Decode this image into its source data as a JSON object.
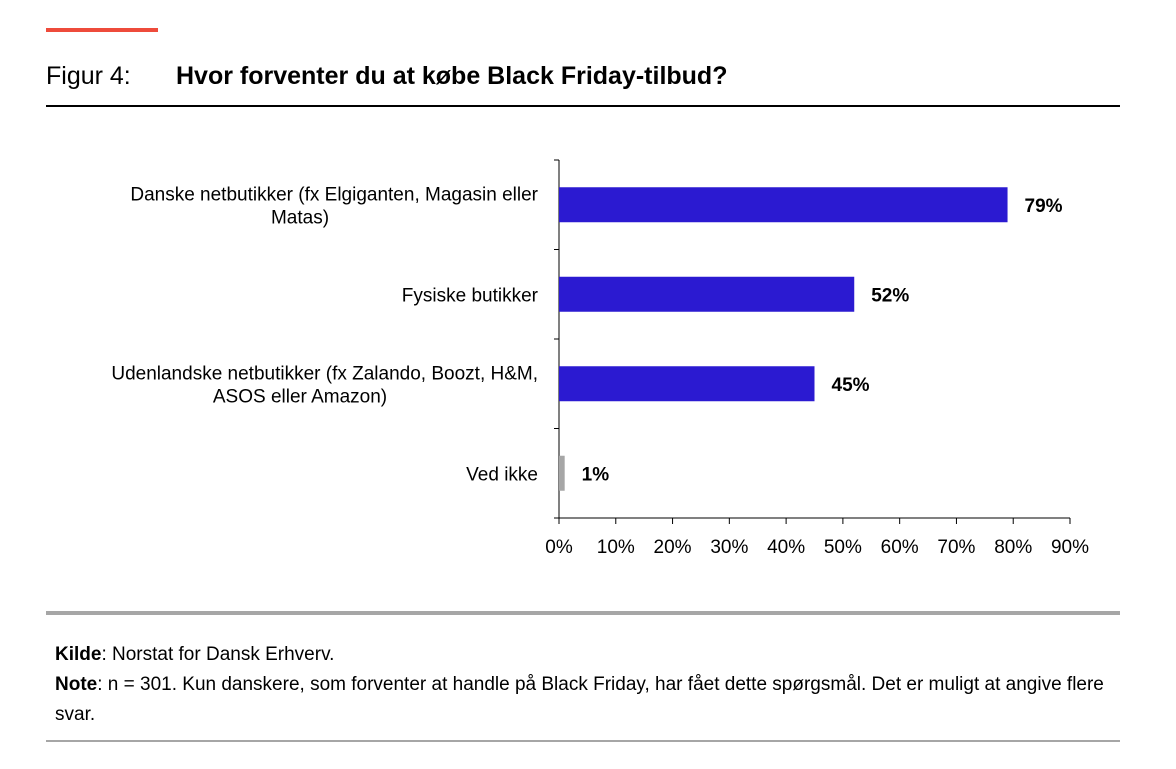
{
  "figure": {
    "label": "Figur 4:",
    "title": "Hvor forventer du at købe Black Friday-tilbud?"
  },
  "colors": {
    "accent": "#ee4b3b",
    "primary_bar": "#2b1ad1",
    "secondary_bar": "#a6a6a6",
    "rule": "#a6a6a6"
  },
  "chart_data": {
    "type": "bar",
    "orientation": "horizontal",
    "categories": [
      [
        "Danske netbutikker (fx Elgiganten, Magasin eller",
        "Matas)"
      ],
      [
        "Fysiske butikker"
      ],
      [
        "Udenlandske netbutikker (fx Zalando, Boozt, H&M,",
        "ASOS eller Amazon)"
      ],
      [
        "Ved ikke"
      ]
    ],
    "values": [
      79,
      52,
      45,
      1
    ],
    "data_labels": [
      "79%",
      "52%",
      "45%",
      "1%"
    ],
    "bar_colors": [
      "#2b1ad1",
      "#2b1ad1",
      "#2b1ad1",
      "#a6a6a6"
    ],
    "xlim": [
      0,
      90
    ],
    "x_ticks": [
      "0%",
      "10%",
      "20%",
      "30%",
      "40%",
      "50%",
      "60%",
      "70%",
      "80%",
      "90%"
    ],
    "grid": false,
    "legend": "none"
  },
  "footer": {
    "source_key": "Kilde",
    "source_text": ": Norstat for Dansk Erhverv.",
    "note_key": "Note",
    "note_text": ": n = 301. Kun danskere, som forventer at handle på Black Friday, har fået dette spørgsmål. Det er muligt at angive flere svar."
  }
}
